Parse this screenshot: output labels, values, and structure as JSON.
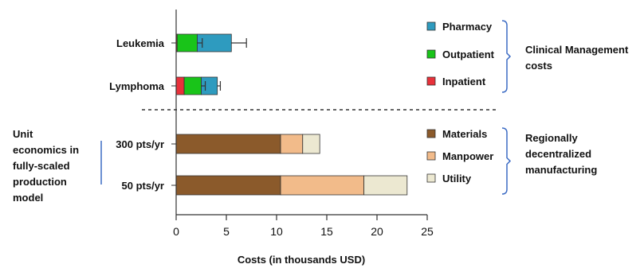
{
  "chart_data": {
    "type": "bar",
    "orientation": "horizontal",
    "stacked": true,
    "xlabel": "Costs (in thousands USD)",
    "xlim": [
      0,
      25
    ],
    "xticks": [
      0,
      5,
      10,
      15,
      20,
      25
    ],
    "grid": false,
    "groups": [
      {
        "name": "Clinical Management costs",
        "legend_placement": "top-right",
        "categories": [
          "Leukemia",
          "Lymphoma"
        ],
        "series": [
          {
            "name": "Inpatient",
            "color": "#e8313a",
            "values": [
              0.1,
              0.8
            ],
            "errors": [
              null,
              null
            ]
          },
          {
            "name": "Outpatient",
            "color": "#19c419",
            "values": [
              2.0,
              1.7
            ],
            "errors": [
              0.5,
              0.4
            ]
          },
          {
            "name": "Pharmacy",
            "color": "#2e9bbf",
            "values": [
              3.4,
              1.6
            ],
            "errors": [
              1.5,
              0.3
            ]
          }
        ],
        "legend_order": [
          "Pharmacy",
          "Outpatient",
          "Inpatient"
        ]
      },
      {
        "name": "Regionally decentralized manufacturing",
        "side_label": "Unit economics in fully-scaled production model",
        "legend_placement": "bottom-right",
        "categories": [
          "300 pts/yr",
          "50 pts/yr"
        ],
        "series": [
          {
            "name": "Materials",
            "color": "#8b5a2b",
            "values": [
              10.4,
              10.4
            ]
          },
          {
            "name": "Manpower",
            "color": "#f2bb8a",
            "values": [
              2.2,
              8.3
            ]
          },
          {
            "name": "Utility",
            "color": "#ece8d1",
            "values": [
              1.7,
              4.3
            ]
          }
        ],
        "legend_order": [
          "Materials",
          "Manpower",
          "Utility"
        ]
      }
    ],
    "group_labels": {
      "top": [
        "Clinical Management",
        "costs"
      ],
      "bottom": [
        "Regionally",
        "decentralized",
        "manufacturing"
      ],
      "left": [
        "Unit",
        "economics in",
        "fully-scaled",
        "production",
        "model"
      ]
    }
  }
}
